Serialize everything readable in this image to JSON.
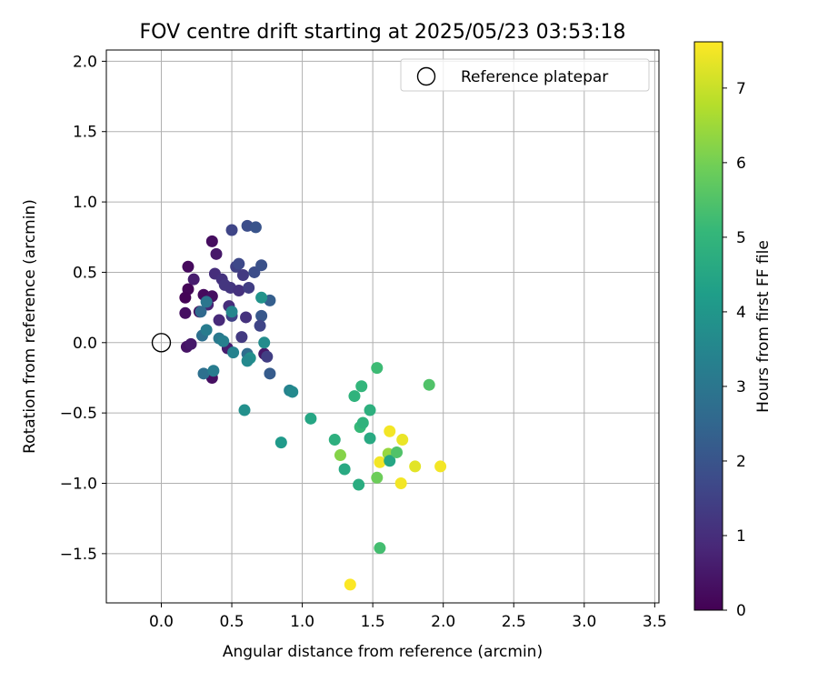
{
  "chart_data": {
    "type": "scatter",
    "title": "FOV centre drift starting at 2025/05/23 03:53:18",
    "xlabel": "Angular distance from reference (arcmin)",
    "ylabel": "Rotation from reference (arcmin)",
    "xlim": [
      -0.39,
      3.53
    ],
    "ylim": [
      -1.85,
      2.08
    ],
    "xticks": [
      0.0,
      0.5,
      1.0,
      1.5,
      2.0,
      2.5,
      3.0,
      3.5
    ],
    "xtick_labels": [
      "0.0",
      "0.5",
      "1.0",
      "1.5",
      "2.0",
      "2.5",
      "3.0",
      "3.5"
    ],
    "yticks": [
      -1.5,
      -1.0,
      -0.5,
      0.0,
      0.5,
      1.0,
      1.5,
      2.0
    ],
    "ytick_labels": [
      "−1.5",
      "−1.0",
      "−0.5",
      "0.0",
      "0.5",
      "1.0",
      "1.5",
      "2.0"
    ],
    "grid": true,
    "legend": {
      "position": "top-right",
      "label": "Reference platepar"
    },
    "reference_point": {
      "x": 0.0,
      "y": 0.0
    },
    "colorbar": {
      "label": "Hours from first FF file",
      "colormap": "viridis",
      "range": [
        0,
        7.62
      ],
      "ticks": [
        0,
        1,
        2,
        3,
        4,
        5,
        6,
        7
      ],
      "tick_labels": [
        "0",
        "1",
        "2",
        "3",
        "4",
        "5",
        "6",
        "7"
      ]
    },
    "points": [
      {
        "x": 0.19,
        "y": 0.54,
        "h": 0.2
      },
      {
        "x": 0.19,
        "y": 0.38,
        "h": 0.1
      },
      {
        "x": 0.17,
        "y": 0.32,
        "h": 0.05
      },
      {
        "x": 0.17,
        "y": 0.21,
        "h": 0.3
      },
      {
        "x": 0.18,
        "y": -0.03,
        "h": 0.4
      },
      {
        "x": 0.21,
        "y": -0.01,
        "h": 0.5
      },
      {
        "x": 0.23,
        "y": 0.45,
        "h": 0.6
      },
      {
        "x": 0.27,
        "y": 0.22,
        "h": 0.15
      },
      {
        "x": 0.3,
        "y": 0.34,
        "h": 0.2
      },
      {
        "x": 0.36,
        "y": 0.72,
        "h": 0.25
      },
      {
        "x": 0.39,
        "y": 0.63,
        "h": 0.5
      },
      {
        "x": 0.36,
        "y": 0.33,
        "h": 0.3
      },
      {
        "x": 0.33,
        "y": 0.27,
        "h": 0.8
      },
      {
        "x": 0.38,
        "y": 0.49,
        "h": 1.0
      },
      {
        "x": 0.43,
        "y": 0.45,
        "h": 1.1
      },
      {
        "x": 0.45,
        "y": 0.41,
        "h": 1.2
      },
      {
        "x": 0.41,
        "y": 0.16,
        "h": 0.9
      },
      {
        "x": 0.36,
        "y": -0.25,
        "h": 0.3
      },
      {
        "x": 0.48,
        "y": 0.26,
        "h": 1.0
      },
      {
        "x": 0.49,
        "y": 0.39,
        "h": 1.2
      },
      {
        "x": 0.5,
        "y": 0.8,
        "h": 1.6
      },
      {
        "x": 0.53,
        "y": 0.54,
        "h": 1.5
      },
      {
        "x": 0.55,
        "y": 0.56,
        "h": 1.7
      },
      {
        "x": 0.55,
        "y": 0.37,
        "h": 1.1
      },
      {
        "x": 0.58,
        "y": 0.48,
        "h": 1.3
      },
      {
        "x": 0.62,
        "y": 0.39,
        "h": 1.4
      },
      {
        "x": 0.61,
        "y": 0.83,
        "h": 1.8
      },
      {
        "x": 0.67,
        "y": 0.82,
        "h": 2.0
      },
      {
        "x": 0.66,
        "y": 0.5,
        "h": 1.8
      },
      {
        "x": 0.71,
        "y": 0.55,
        "h": 1.9
      },
      {
        "x": 0.71,
        "y": 0.19,
        "h": 2.1
      },
      {
        "x": 0.7,
        "y": 0.12,
        "h": 1.6
      },
      {
        "x": 0.6,
        "y": 0.18,
        "h": 1.1
      },
      {
        "x": 0.57,
        "y": 0.04,
        "h": 1.3
      },
      {
        "x": 0.5,
        "y": 0.19,
        "h": 1.5
      },
      {
        "x": 0.47,
        "y": -0.04,
        "h": 0.6
      },
      {
        "x": 0.5,
        "y": 0.22,
        "h": 3.5
      },
      {
        "x": 0.77,
        "y": 0.3,
        "h": 2.3
      },
      {
        "x": 0.73,
        "y": -0.08,
        "h": 0.5
      },
      {
        "x": 0.75,
        "y": -0.1,
        "h": 1.4
      },
      {
        "x": 0.77,
        "y": -0.22,
        "h": 2.2
      },
      {
        "x": 0.28,
        "y": 0.22,
        "h": 2.6
      },
      {
        "x": 0.32,
        "y": 0.29,
        "h": 3.0
      },
      {
        "x": 0.29,
        "y": 0.05,
        "h": 2.8
      },
      {
        "x": 0.32,
        "y": 0.09,
        "h": 3.2
      },
      {
        "x": 0.41,
        "y": 0.03,
        "h": 3.1
      },
      {
        "x": 0.44,
        "y": 0.01,
        "h": 3.3
      },
      {
        "x": 0.51,
        "y": -0.07,
        "h": 3.4
      },
      {
        "x": 0.3,
        "y": -0.22,
        "h": 2.8
      },
      {
        "x": 0.37,
        "y": -0.2,
        "h": 3.2
      },
      {
        "x": 0.61,
        "y": -0.08,
        "h": 2.7
      },
      {
        "x": 0.63,
        "y": -0.11,
        "h": 3.8
      },
      {
        "x": 0.61,
        "y": -0.13,
        "h": 3.6
      },
      {
        "x": 0.71,
        "y": 0.32,
        "h": 3.9
      },
      {
        "x": 0.73,
        "y": 0.0,
        "h": 3.7
      },
      {
        "x": 0.59,
        "y": -0.48,
        "h": 3.8
      },
      {
        "x": 0.91,
        "y": -0.34,
        "h": 3.4
      },
      {
        "x": 0.93,
        "y": -0.35,
        "h": 3.6
      },
      {
        "x": 0.85,
        "y": -0.71,
        "h": 4.1
      },
      {
        "x": 1.06,
        "y": -0.54,
        "h": 4.5
      },
      {
        "x": 1.23,
        "y": -0.69,
        "h": 4.8
      },
      {
        "x": 1.27,
        "y": -0.8,
        "h": 6.2
      },
      {
        "x": 1.3,
        "y": -0.9,
        "h": 4.6
      },
      {
        "x": 1.34,
        "y": -1.72,
        "h": 7.6
      },
      {
        "x": 1.37,
        "y": -0.38,
        "h": 4.9
      },
      {
        "x": 1.4,
        "y": -1.01,
        "h": 4.7
      },
      {
        "x": 1.41,
        "y": -0.6,
        "h": 5.1
      },
      {
        "x": 1.42,
        "y": -0.31,
        "h": 5.0
      },
      {
        "x": 1.43,
        "y": -0.57,
        "h": 4.9
      },
      {
        "x": 1.48,
        "y": -0.48,
        "h": 4.8
      },
      {
        "x": 1.48,
        "y": -0.68,
        "h": 4.6
      },
      {
        "x": 1.53,
        "y": -0.18,
        "h": 5.2
      },
      {
        "x": 1.53,
        "y": -0.96,
        "h": 5.9
      },
      {
        "x": 1.55,
        "y": -1.46,
        "h": 5.3
      },
      {
        "x": 1.55,
        "y": -0.85,
        "h": 7.5
      },
      {
        "x": 1.61,
        "y": -0.79,
        "h": 6.4
      },
      {
        "x": 1.62,
        "y": -0.84,
        "h": 4.5
      },
      {
        "x": 1.62,
        "y": -0.63,
        "h": 7.5
      },
      {
        "x": 1.67,
        "y": -0.78,
        "h": 5.5
      },
      {
        "x": 1.7,
        "y": -1.0,
        "h": 7.5
      },
      {
        "x": 1.71,
        "y": -0.69,
        "h": 7.4
      },
      {
        "x": 1.8,
        "y": -0.88,
        "h": 7.3
      },
      {
        "x": 1.9,
        "y": -0.3,
        "h": 5.5
      },
      {
        "x": 1.98,
        "y": -0.88,
        "h": 7.5
      }
    ]
  }
}
